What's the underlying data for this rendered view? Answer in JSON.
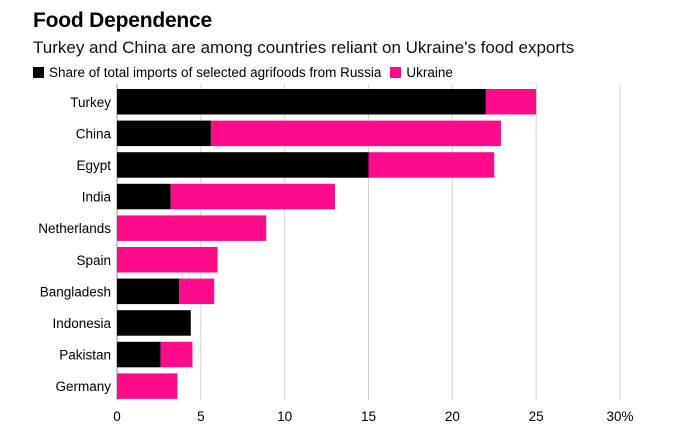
{
  "chart_data": {
    "type": "bar",
    "orientation": "horizontal",
    "stacked": true,
    "title": "Food Dependence",
    "subtitle": "Turkey and China are among countries reliant on Ukraine's food exports",
    "categories": [
      "Turkey",
      "China",
      "Egypt",
      "India",
      "Netherlands",
      "Spain",
      "Bangladesh",
      "Indonesia",
      "Pakistan",
      "Germany"
    ],
    "series": [
      {
        "name": "Share of total imports of selected agrifoods from Russia",
        "color": "#000000",
        "values": [
          22,
          5.6,
          15,
          3.2,
          0,
          0,
          3.7,
          4.4,
          2.6,
          0
        ]
      },
      {
        "name": "Ukraine",
        "color": "#ff0a8b",
        "values": [
          3,
          17.3,
          7.5,
          9.8,
          8.9,
          6,
          2.1,
          0,
          1.9,
          3.6
        ]
      }
    ],
    "xlim": [
      0,
      30
    ],
    "xticks": [
      "0",
      "5",
      "10",
      "15",
      "20",
      "25",
      "30%"
    ],
    "xtick_values": [
      0,
      5,
      10,
      15,
      20,
      25,
      30
    ],
    "grid": "vertical",
    "legend": "top-left"
  }
}
